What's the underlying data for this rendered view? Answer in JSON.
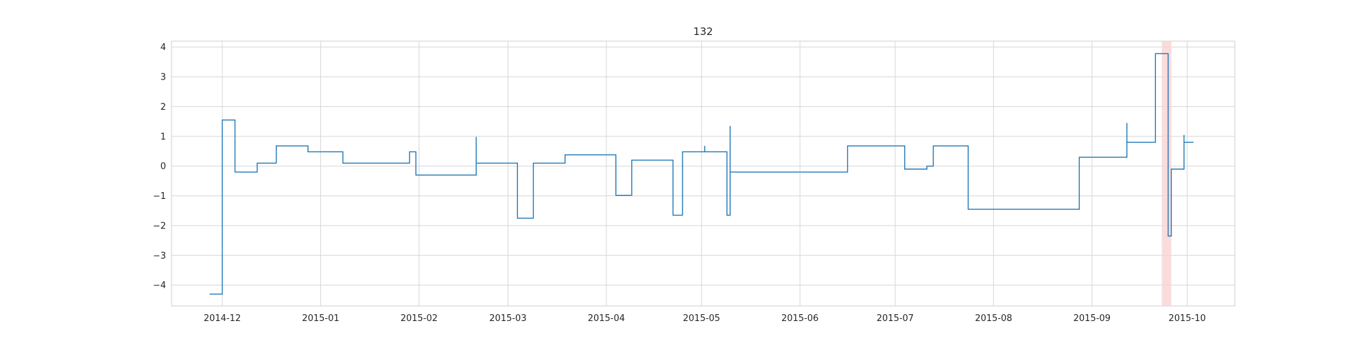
{
  "chart_data": {
    "type": "line",
    "title": "132",
    "xlabel": "",
    "ylabel": "",
    "x_axis_type": "date",
    "xlim": [
      "2014-11-15",
      "2015-10-16"
    ],
    "ylim": [
      -4.7,
      4.2
    ],
    "x_ticks": [
      "2014-12-01",
      "2015-01-01",
      "2015-02-01",
      "2015-03-01",
      "2015-04-01",
      "2015-05-01",
      "2015-06-01",
      "2015-07-01",
      "2015-08-01",
      "2015-09-01",
      "2015-10-01"
    ],
    "x_tick_labels": [
      "2014-12",
      "2015-01",
      "2015-02",
      "2015-03",
      "2015-04",
      "2015-05",
      "2015-06",
      "2015-07",
      "2015-08",
      "2015-09",
      "2015-10"
    ],
    "y_ticks": [
      4,
      3,
      2,
      1,
      0,
      -1,
      -2,
      -3,
      -4
    ],
    "y_tick_labels": [
      "4",
      "3",
      "2",
      "1",
      "0",
      "−1",
      "−2",
      "−3",
      "−4"
    ],
    "grid": true,
    "highlight": {
      "x_start": "2015-09-23",
      "x_end": "2015-09-26",
      "color": "#f8d0d0"
    },
    "series": [
      {
        "color": "#1f77b4",
        "step": true,
        "x": [
          "2014-11-27",
          "2014-11-30",
          "2014-12-01",
          "2014-12-05",
          "2014-12-12",
          "2014-12-18",
          "2014-12-28",
          "2015-01-08",
          "2015-01-29",
          "2015-01-31",
          "2015-02-19",
          "2015-02-19",
          "2015-02-20",
          "2015-03-04",
          "2015-03-09",
          "2015-03-19",
          "2015-04-04",
          "2015-04-09",
          "2015-04-22",
          "2015-04-25",
          "2015-05-02",
          "2015-05-02",
          "2015-05-09",
          "2015-05-10",
          "2015-05-10",
          "2015-05-16",
          "2015-06-16",
          "2015-07-04",
          "2015-07-11",
          "2015-07-13",
          "2015-07-24",
          "2015-08-28",
          "2015-09-12",
          "2015-09-12",
          "2015-09-21",
          "2015-09-25",
          "2015-09-25",
          "2015-09-26",
          "2015-09-30",
          "2015-09-30",
          "2015-10-03"
        ],
        "values": [
          -4.3,
          -4.3,
          1.55,
          -0.2,
          0.1,
          0.68,
          0.48,
          0.1,
          0.48,
          -0.3,
          0.98,
          0.1,
          0.1,
          -1.75,
          0.1,
          0.38,
          -0.98,
          0.2,
          -1.65,
          0.48,
          0.68,
          0.48,
          -1.65,
          1.35,
          -0.2,
          -0.2,
          0.68,
          -0.1,
          0.0,
          0.68,
          -1.45,
          0.3,
          1.45,
          0.8,
          3.78,
          -0.1,
          -2.35,
          -0.1,
          1.05,
          0.8,
          0.8
        ]
      }
    ]
  }
}
